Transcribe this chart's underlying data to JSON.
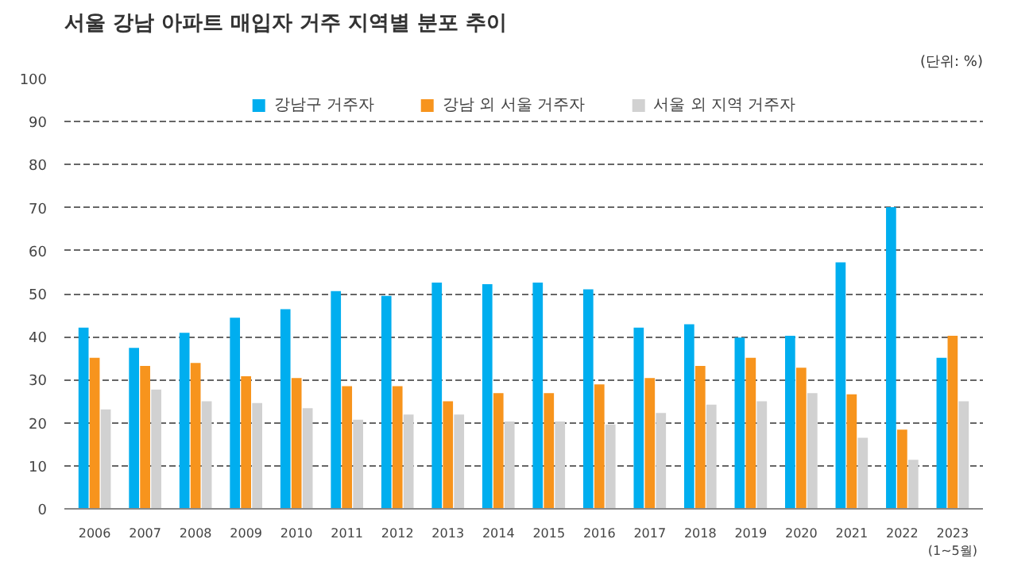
{
  "chart_data": {
    "type": "bar",
    "title": "서울 강남 아파트 매입자 거주 지역별 분포 추이",
    "annotations": [
      "(단위: %)"
    ],
    "categories": [
      "2006",
      "2007",
      "2008",
      "2009",
      "2010",
      "2011",
      "2012",
      "2013",
      "2014",
      "2015",
      "2016",
      "2017",
      "2018",
      "2019",
      "2020",
      "2021",
      "2022",
      "2023(1~5월)"
    ],
    "series": [
      {
        "name": "강남구 거주자",
        "color": "#00aeef",
        "values": [
          42.1,
          37.4,
          40.9,
          44.4,
          46.4,
          50.6,
          49.5,
          52.6,
          52.2,
          52.6,
          51.0,
          42.1,
          42.9,
          39.8,
          40.2,
          57.3,
          70.1,
          35.1
        ]
      },
      {
        "name": "강남 외 서울 거주자",
        "color": "#f7941d",
        "values": [
          35.1,
          33.2,
          33.9,
          30.8,
          30.4,
          28.5,
          28.5,
          25.0,
          26.9,
          26.9,
          28.9,
          30.4,
          33.2,
          35.1,
          32.8,
          26.6,
          18.4,
          40.2
        ]
      },
      {
        "name": "서울 외 지역 거주자",
        "color": "#d1d1d1",
        "values": [
          23.1,
          27.7,
          25.0,
          24.6,
          23.4,
          20.7,
          21.9,
          21.9,
          20.3,
          20.3,
          19.6,
          22.3,
          24.2,
          25.0,
          26.9,
          16.5,
          11.4,
          25.0
        ]
      }
    ],
    "ylim": [
      0,
      100
    ],
    "yticks": [
      0,
      10,
      20,
      30,
      40,
      50,
      60,
      70,
      80,
      90,
      100
    ],
    "grid": "y",
    "legend": "top"
  }
}
